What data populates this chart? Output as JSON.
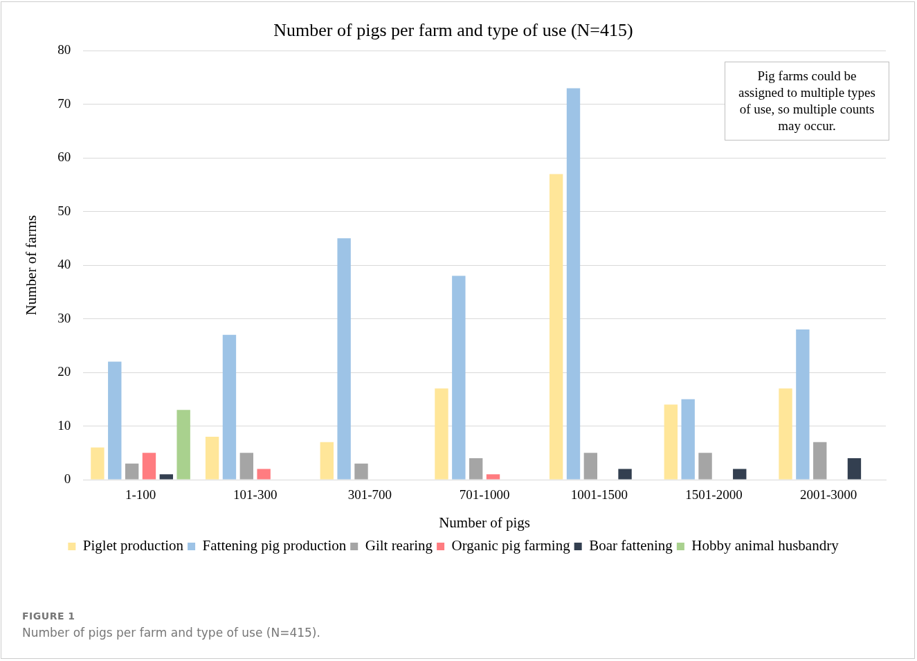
{
  "chart_data": {
    "type": "bar",
    "title": "Number of pigs per farm and type of use (N=415)",
    "xlabel": "Number of pigs",
    "ylabel": "Number of farms",
    "categories": [
      "1-100",
      "101-300",
      "301-700",
      "701-1000",
      "1001-1500",
      "1501-2000",
      "2001-3000"
    ],
    "series": [
      {
        "name": "Piglet production",
        "color": "#ffe699",
        "values": [
          6,
          8,
          7,
          17,
          57,
          14,
          17
        ]
      },
      {
        "name": "Fattening pig production",
        "color": "#9dc3e6",
        "values": [
          22,
          27,
          45,
          38,
          73,
          15,
          28
        ]
      },
      {
        "name": "Gilt rearing",
        "color": "#a5a5a5",
        "values": [
          3,
          5,
          3,
          4,
          5,
          5,
          7
        ]
      },
      {
        "name": "Organic pig farming",
        "color": "#ff7c80",
        "values": [
          5,
          2,
          0,
          1,
          0,
          0,
          0
        ]
      },
      {
        "name": "Boar fattening",
        "color": "#333f50",
        "values": [
          1,
          0,
          0,
          0,
          2,
          2,
          4
        ]
      },
      {
        "name": "Hobby animal husbandry",
        "color": "#a9d18e",
        "values": [
          13,
          0,
          0,
          0,
          0,
          0,
          0
        ]
      }
    ],
    "ylim": [
      0,
      80
    ],
    "yticks": [
      0,
      10,
      20,
      30,
      40,
      50,
      60,
      70,
      80
    ],
    "grid": "y",
    "legend": "bottom",
    "annotations": [
      "Pig farms could be assigned to multiple types of use, so multiple counts may occur.",
      "FIGURE 1",
      "Number of pigs per farm and type of use (N=415)."
    ]
  }
}
